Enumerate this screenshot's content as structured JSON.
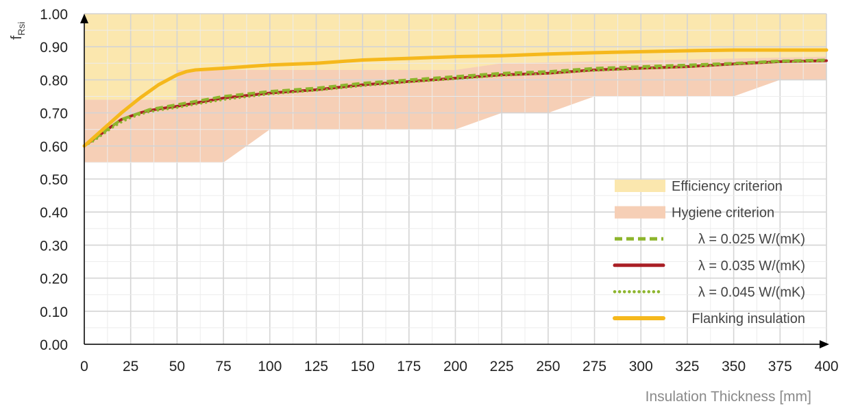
{
  "chart_data": {
    "type": "line",
    "xlabel": "Insulation Thickness [mm]",
    "ylabel_main": "f",
    "ylabel_sub": "Rsi",
    "xlim": [
      0,
      400
    ],
    "ylim": [
      0,
      1.0
    ],
    "x_ticks": [
      "0",
      "25",
      "50",
      "75",
      "100",
      "125",
      "150",
      "175",
      "200",
      "225",
      "250",
      "275",
      "300",
      "325",
      "350",
      "375",
      "400"
    ],
    "y_ticks": [
      "0.00",
      "0.10",
      "0.20",
      "0.30",
      "0.40",
      "0.50",
      "0.60",
      "0.70",
      "0.80",
      "0.90",
      "1.00"
    ],
    "grid": true,
    "legend_position": "bottom-right",
    "bands": [
      {
        "name": "Efficiency criterion",
        "color": "#fbe7ae",
        "upper": [
          [
            0,
            1.0
          ],
          [
            400,
            1.0
          ]
        ],
        "lower": [
          [
            0,
            0.74
          ],
          [
            50,
            0.74
          ],
          [
            50,
            0.83
          ],
          [
            400,
            0.83
          ]
        ]
      },
      {
        "name": "Hygiene criterion",
        "color": "#f6cfb6",
        "upper": [
          [
            0,
            0.74
          ],
          [
            50,
            0.74
          ],
          [
            50,
            0.83
          ],
          [
            200,
            0.83
          ],
          [
            225,
            0.85
          ],
          [
            400,
            0.87
          ]
        ],
        "lower": [
          [
            0,
            0.55
          ],
          [
            75,
            0.55
          ],
          [
            100,
            0.65
          ],
          [
            200,
            0.65
          ],
          [
            225,
            0.7
          ],
          [
            250,
            0.7
          ],
          [
            275,
            0.75
          ],
          [
            350,
            0.75
          ],
          [
            375,
            0.8
          ],
          [
            400,
            0.8
          ]
        ]
      }
    ],
    "series": [
      {
        "name": "λ = 0.025 W/(mK)",
        "color": "#8db52d",
        "style": "dashed",
        "x": [
          0,
          5,
          10,
          15,
          20,
          25,
          30,
          35,
          40,
          50,
          60,
          75,
          100,
          125,
          150,
          175,
          200,
          225,
          250,
          275,
          300,
          325,
          350,
          375,
          400
        ],
        "y": [
          0.6,
          0.62,
          0.64,
          0.66,
          0.68,
          0.69,
          0.7,
          0.71,
          0.715,
          0.725,
          0.735,
          0.75,
          0.765,
          0.775,
          0.79,
          0.8,
          0.81,
          0.82,
          0.825,
          0.835,
          0.84,
          0.845,
          0.85,
          0.857,
          0.86
        ]
      },
      {
        "name": "λ = 0.035 W/(mK)",
        "color": "#a91f25",
        "style": "solid",
        "x": [
          0,
          5,
          10,
          15,
          20,
          25,
          30,
          35,
          40,
          50,
          60,
          75,
          100,
          125,
          150,
          175,
          200,
          225,
          250,
          275,
          300,
          325,
          350,
          375,
          400
        ],
        "y": [
          0.6,
          0.62,
          0.64,
          0.66,
          0.68,
          0.69,
          0.7,
          0.707,
          0.712,
          0.72,
          0.73,
          0.745,
          0.76,
          0.77,
          0.785,
          0.795,
          0.805,
          0.815,
          0.82,
          0.83,
          0.835,
          0.84,
          0.848,
          0.855,
          0.858
        ]
      },
      {
        "name": "λ = 0.045 W/(mK)",
        "color": "#8db52d",
        "style": "dotted",
        "x": [
          0,
          5,
          10,
          15,
          20,
          25,
          30,
          35,
          40,
          50,
          60,
          75,
          100,
          125,
          150,
          175,
          200,
          225,
          250,
          275,
          300,
          325,
          350,
          375,
          400
        ],
        "y": [
          0.6,
          0.615,
          0.635,
          0.655,
          0.672,
          0.685,
          0.695,
          0.703,
          0.708,
          0.716,
          0.726,
          0.74,
          0.757,
          0.768,
          0.782,
          0.793,
          0.803,
          0.813,
          0.819,
          0.828,
          0.834,
          0.839,
          0.847,
          0.854,
          0.857
        ]
      },
      {
        "name": "Flanking insulation",
        "color": "#f5b81c",
        "style": "solid",
        "x": [
          0,
          10,
          20,
          30,
          40,
          50,
          55,
          60,
          75,
          100,
          125,
          150,
          175,
          200,
          225,
          250,
          275,
          300,
          325,
          350,
          375,
          400
        ],
        "y": [
          0.6,
          0.65,
          0.7,
          0.745,
          0.785,
          0.815,
          0.825,
          0.83,
          0.835,
          0.845,
          0.85,
          0.86,
          0.865,
          0.87,
          0.873,
          0.878,
          0.882,
          0.885,
          0.888,
          0.89,
          0.89,
          0.89
        ]
      }
    ]
  }
}
